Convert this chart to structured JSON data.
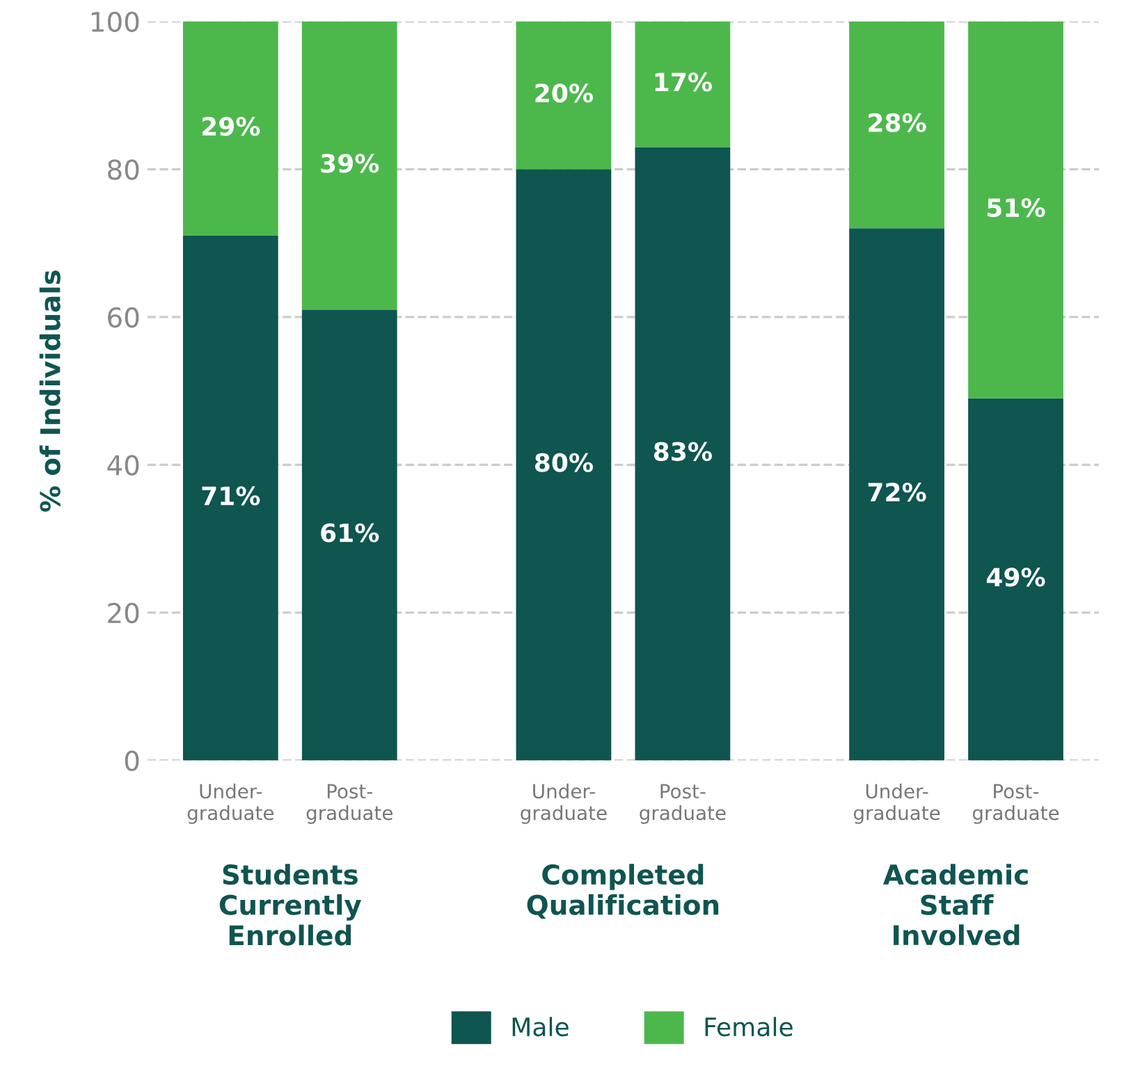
{
  "chart_data": {
    "type": "bar",
    "stacked": true,
    "ylabel": "% of Individuals",
    "categories": [
      "Under-\ngraduate",
      "Post-\ngraduate",
      "Under-\ngraduate",
      "Post-\ngraduate",
      "Under-\ngraduate",
      "Post-\ngraduate"
    ],
    "series": [
      {
        "name": "Male",
        "color": "#0f5550",
        "values": [
          71,
          61,
          80,
          83,
          72,
          49
        ],
        "value_labels": [
          "71%",
          "61%",
          "80%",
          "83%",
          "72%",
          "49%"
        ]
      },
      {
        "name": "Female",
        "color": "#4cb84c",
        "values": [
          29,
          39,
          20,
          17,
          28,
          51
        ],
        "value_labels": [
          "29%",
          "39%",
          "20%",
          "17%",
          "28%",
          "51%"
        ]
      }
    ],
    "annotations": [
      "Students\nCurrently\nEnrolled",
      "Completed\nQualification",
      "Academic\nStaff\nInvolved"
    ],
    "ylim": [
      0,
      100
    ],
    "yticks": [
      0,
      20,
      40,
      60,
      80,
      100
    ],
    "grid": "y",
    "legend": "bottom"
  }
}
